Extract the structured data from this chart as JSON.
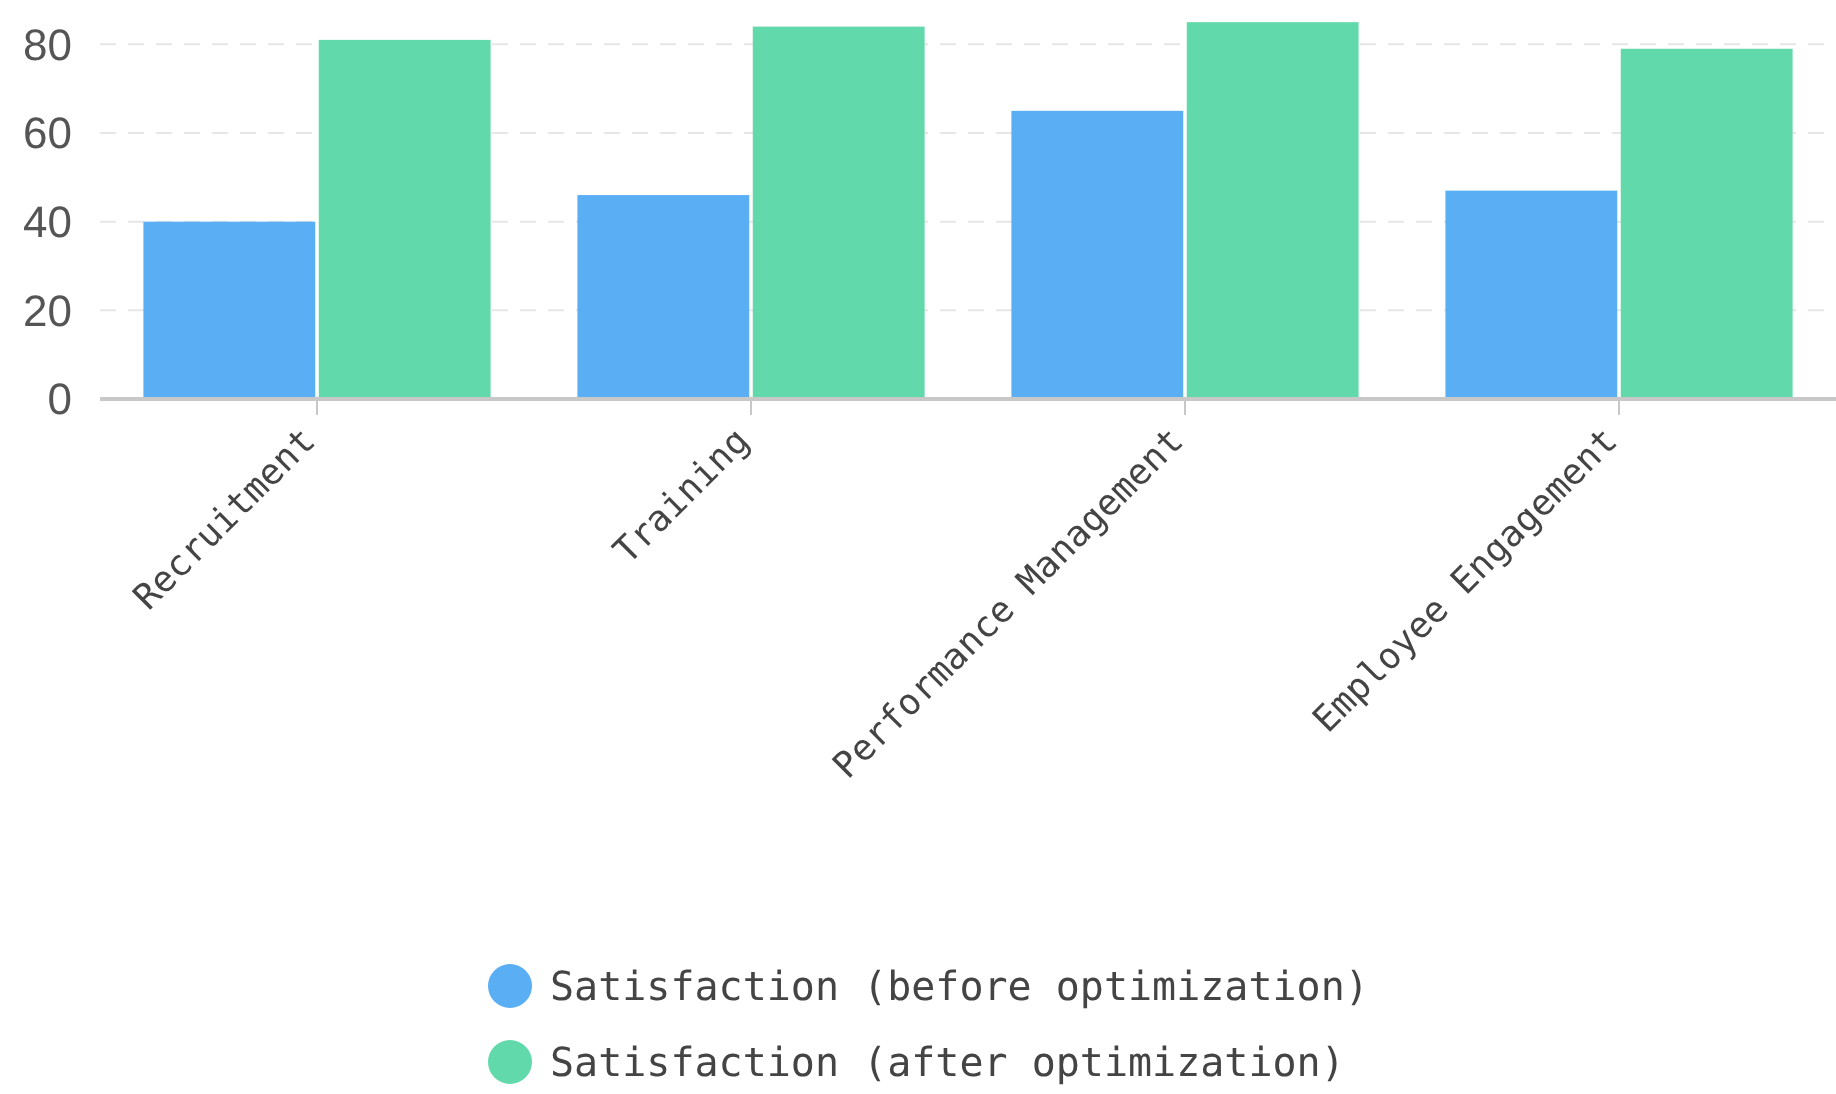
{
  "chart_data": {
    "type": "bar",
    "categories": [
      "Recruitment",
      "Training",
      "Performance Management",
      "Employee Engagement"
    ],
    "series": [
      {
        "name": "Satisfaction (before optimization)",
        "color": "#5aaef4",
        "values": [
          40,
          46,
          65,
          47
        ]
      },
      {
        "name": "Satisfaction (after optimization)",
        "color": "#61d9ab",
        "values": [
          81,
          84,
          85,
          79
        ]
      }
    ],
    "ylim": [
      0,
      90
    ],
    "yticks": [
      0,
      20,
      40,
      60,
      80
    ],
    "grid": "y",
    "legend": "bottom"
  }
}
